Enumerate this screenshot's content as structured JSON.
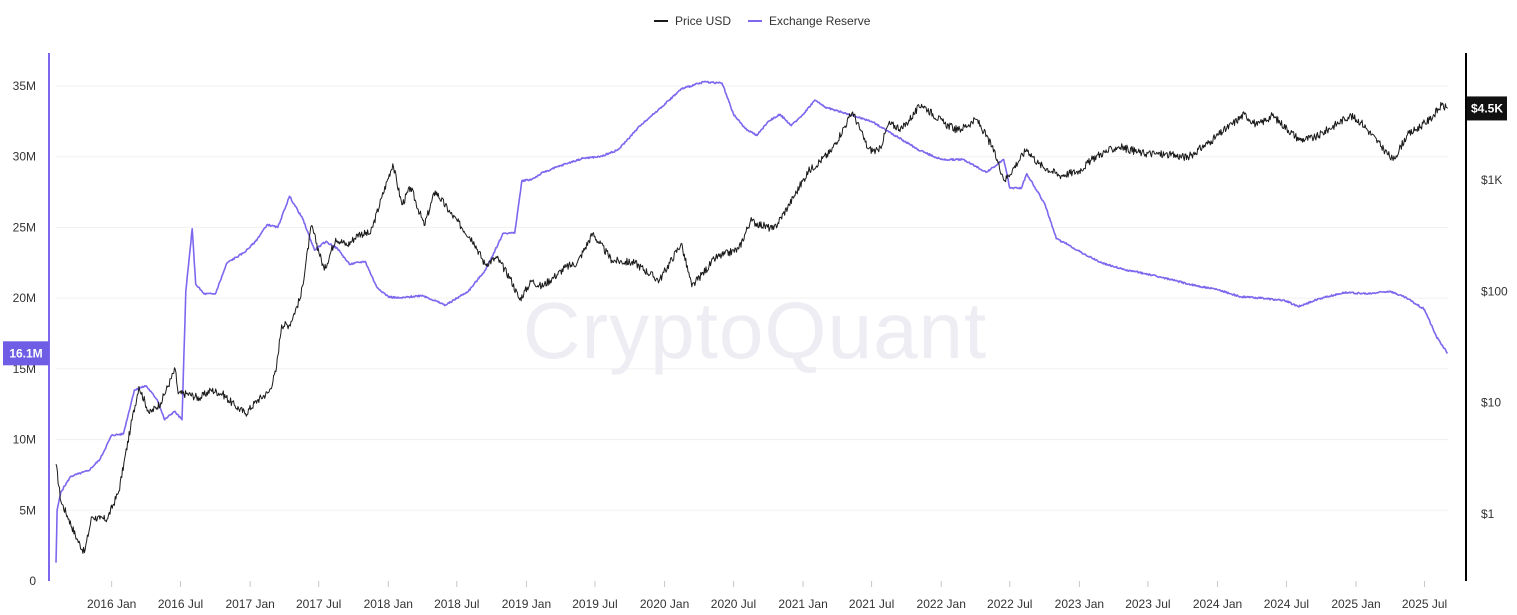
{
  "watermark": "CryptoQuant",
  "colors": {
    "price": "#1a1a1a",
    "reserve": "#7b68ee",
    "grid": "#f0f0f0",
    "badge_price_bg": "#111111",
    "badge_reserve_bg": "#6f5de6"
  },
  "badges": {
    "reserve_current": "16.1M",
    "price_current": "$4.5K"
  },
  "chart_data": {
    "type": "line",
    "title": "",
    "legend": {
      "placement": "top-center",
      "entries": [
        "Price USD",
        "Exchange Reserve"
      ]
    },
    "grid": true,
    "x_ticks": [
      "2016 Jan",
      "2016 Jul",
      "2017 Jan",
      "2017 Jul",
      "2018 Jan",
      "2018 Jul",
      "2019 Jan",
      "2019 Jul",
      "2020 Jan",
      "2020 Jul",
      "2021 Jan",
      "2021 Jul",
      "2022 Jan",
      "2022 Jul",
      "2023 Jan",
      "2023 Jul",
      "2024 Jan",
      "2024 Jul",
      "2025 Jan",
      "2025 Jul"
    ],
    "x_range": [
      "2015-08-07",
      "2025-09-01"
    ],
    "y_left": {
      "label": "",
      "range": [
        0,
        35000000
      ],
      "ticks": [
        {
          "value": 0,
          "label": "0"
        },
        {
          "value": 5000000,
          "label": "5M"
        },
        {
          "value": 10000000,
          "label": "10M"
        },
        {
          "value": 15000000,
          "label": "15M"
        },
        {
          "value": 20000000,
          "label": "20M"
        },
        {
          "value": 25000000,
          "label": "25M"
        },
        {
          "value": 30000000,
          "label": "30M"
        },
        {
          "value": 35000000,
          "label": "35M"
        }
      ]
    },
    "y_right": {
      "label": "",
      "scale": "log",
      "range": [
        0.25,
        7000
      ],
      "ticks": [
        {
          "value": 1,
          "label": "$1"
        },
        {
          "value": 10,
          "label": "$10"
        },
        {
          "value": 100,
          "label": "$100"
        },
        {
          "value": 1000,
          "label": "$1K"
        }
      ]
    },
    "series": [
      {
        "name": "Exchange Reserve",
        "axis": "left",
        "points": [
          [
            "2015-08-07",
            1300000
          ],
          [
            "2015-08-10",
            5000000
          ],
          [
            "2015-08-20",
            6300000
          ],
          [
            "2015-09-15",
            7400000
          ],
          [
            "2015-11-01",
            7800000
          ],
          [
            "2015-12-01",
            8600000
          ],
          [
            "2016-01-01",
            10300000
          ],
          [
            "2016-02-01",
            10400000
          ],
          [
            "2016-03-01",
            13500000
          ],
          [
            "2016-04-01",
            13800000
          ],
          [
            "2016-05-01",
            12800000
          ],
          [
            "2016-05-20",
            11400000
          ],
          [
            "2016-06-15",
            12000000
          ],
          [
            "2016-07-05",
            11400000
          ],
          [
            "2016-07-10",
            16000000
          ],
          [
            "2016-07-15",
            20500000
          ],
          [
            "2016-08-01",
            24900000
          ],
          [
            "2016-08-10",
            21000000
          ],
          [
            "2016-09-01",
            20300000
          ],
          [
            "2016-10-01",
            20300000
          ],
          [
            "2016-11-01",
            22500000
          ],
          [
            "2016-12-15",
            23200000
          ],
          [
            "2017-01-15",
            24000000
          ],
          [
            "2017-02-15",
            25200000
          ],
          [
            "2017-03-15",
            25000000
          ],
          [
            "2017-04-15",
            27200000
          ],
          [
            "2017-05-20",
            25600000
          ],
          [
            "2017-06-20",
            23400000
          ],
          [
            "2017-07-20",
            24000000
          ],
          [
            "2017-08-20",
            23500000
          ],
          [
            "2017-09-20",
            22400000
          ],
          [
            "2017-11-01",
            22600000
          ],
          [
            "2017-12-01",
            20800000
          ],
          [
            "2018-01-01",
            20100000
          ],
          [
            "2018-02-01",
            20000000
          ],
          [
            "2018-04-01",
            20200000
          ],
          [
            "2018-06-01",
            19500000
          ],
          [
            "2018-08-01",
            20500000
          ],
          [
            "2018-09-15",
            22000000
          ],
          [
            "2018-11-01",
            24600000
          ],
          [
            "2018-12-01",
            24600000
          ],
          [
            "2018-12-20",
            28300000
          ],
          [
            "2019-01-15",
            28400000
          ],
          [
            "2019-02-15",
            28900000
          ],
          [
            "2019-04-15",
            29500000
          ],
          [
            "2019-06-01",
            29900000
          ],
          [
            "2019-07-15",
            30000000
          ],
          [
            "2019-09-01",
            30500000
          ],
          [
            "2019-11-01",
            32300000
          ],
          [
            "2019-12-15",
            33300000
          ],
          [
            "2020-02-15",
            34800000
          ],
          [
            "2020-04-15",
            35300000
          ],
          [
            "2020-06-01",
            35200000
          ],
          [
            "2020-07-01",
            33000000
          ],
          [
            "2020-08-01",
            32000000
          ],
          [
            "2020-09-01",
            31500000
          ],
          [
            "2020-10-01",
            32500000
          ],
          [
            "2020-11-01",
            33000000
          ],
          [
            "2020-12-01",
            32200000
          ],
          [
            "2021-01-01",
            33000000
          ],
          [
            "2021-02-01",
            34000000
          ],
          [
            "2021-03-01",
            33500000
          ],
          [
            "2021-05-01",
            33000000
          ],
          [
            "2021-07-01",
            32500000
          ],
          [
            "2021-09-01",
            31500000
          ],
          [
            "2021-11-01",
            30500000
          ],
          [
            "2022-01-01",
            29800000
          ],
          [
            "2022-03-01",
            29800000
          ],
          [
            "2022-05-01",
            28900000
          ],
          [
            "2022-06-15",
            29800000
          ],
          [
            "2022-07-01",
            27800000
          ],
          [
            "2022-08-01",
            27800000
          ],
          [
            "2022-08-15",
            28800000
          ],
          [
            "2022-10-01",
            26700000
          ],
          [
            "2022-11-01",
            24200000
          ],
          [
            "2022-12-01",
            23800000
          ],
          [
            "2023-01-15",
            23100000
          ],
          [
            "2023-03-01",
            22500000
          ],
          [
            "2023-05-01",
            22000000
          ],
          [
            "2023-07-01",
            21700000
          ],
          [
            "2023-09-01",
            21300000
          ],
          [
            "2023-11-01",
            20900000
          ],
          [
            "2024-01-01",
            20600000
          ],
          [
            "2024-03-01",
            20100000
          ],
          [
            "2024-05-01",
            20000000
          ],
          [
            "2024-07-01",
            19800000
          ],
          [
            "2024-08-01",
            19400000
          ],
          [
            "2024-10-01",
            20000000
          ],
          [
            "2024-12-01",
            20400000
          ],
          [
            "2025-02-01",
            20300000
          ],
          [
            "2025-04-01",
            20500000
          ],
          [
            "2025-05-15",
            20000000
          ],
          [
            "2025-07-01",
            19200000
          ],
          [
            "2025-08-01",
            17300000
          ],
          [
            "2025-08-31",
            16100000
          ]
        ]
      },
      {
        "name": "Price USD",
        "axis": "right",
        "points": [
          [
            "2015-08-07",
            2.8
          ],
          [
            "2015-08-20",
            1.3
          ],
          [
            "2015-09-10",
            0.9
          ],
          [
            "2015-10-01",
            0.6
          ],
          [
            "2015-10-21",
            0.45
          ],
          [
            "2015-11-10",
            0.95
          ],
          [
            "2015-12-01",
            0.9
          ],
          [
            "2015-12-20",
            0.9
          ],
          [
            "2016-01-20",
            1.6
          ],
          [
            "2016-02-20",
            6
          ],
          [
            "2016-03-13",
            14
          ],
          [
            "2016-04-10",
            8
          ],
          [
            "2016-05-10",
            10
          ],
          [
            "2016-06-17",
            20
          ],
          [
            "2016-06-25",
            12
          ],
          [
            "2016-07-20",
            12
          ],
          [
            "2016-08-20",
            11
          ],
          [
            "2016-09-20",
            13
          ],
          [
            "2016-10-20",
            12
          ],
          [
            "2016-11-20",
            9.5
          ],
          [
            "2016-12-20",
            8
          ],
          [
            "2017-01-20",
            10.5
          ],
          [
            "2017-02-20",
            12.5
          ],
          [
            "2017-03-10",
            19
          ],
          [
            "2017-03-25",
            50
          ],
          [
            "2017-04-15",
            50
          ],
          [
            "2017-05-15",
            90
          ],
          [
            "2017-06-12",
            390
          ],
          [
            "2017-07-16",
            155
          ],
          [
            "2017-08-15",
            300
          ],
          [
            "2017-09-15",
            260
          ],
          [
            "2017-10-15",
            330
          ],
          [
            "2017-11-15",
            330
          ],
          [
            "2017-12-15",
            700
          ],
          [
            "2018-01-13",
            1400
          ],
          [
            "2018-02-06",
            600
          ],
          [
            "2018-03-01",
            860
          ],
          [
            "2018-04-06",
            390
          ],
          [
            "2018-05-05",
            800
          ],
          [
            "2018-06-15",
            500
          ],
          [
            "2018-08-15",
            280
          ],
          [
            "2018-09-13",
            175
          ],
          [
            "2018-10-15",
            200
          ],
          [
            "2018-11-20",
            130
          ],
          [
            "2018-12-14",
            84
          ],
          [
            "2019-01-15",
            125
          ],
          [
            "2019-02-10",
            110
          ],
          [
            "2019-03-15",
            135
          ],
          [
            "2019-04-15",
            165
          ],
          [
            "2019-05-15",
            180
          ],
          [
            "2019-06-25",
            330
          ],
          [
            "2019-08-15",
            190
          ],
          [
            "2019-10-15",
            180
          ],
          [
            "2019-12-18",
            125
          ],
          [
            "2020-02-14",
            270
          ],
          [
            "2020-03-13",
            110
          ],
          [
            "2020-05-15",
            200
          ],
          [
            "2020-07-15",
            240
          ],
          [
            "2020-08-15",
            430
          ],
          [
            "2020-10-15",
            360
          ],
          [
            "2020-11-25",
            600
          ],
          [
            "2021-01-15",
            1200
          ],
          [
            "2021-03-15",
            1800
          ],
          [
            "2021-05-12",
            4100
          ],
          [
            "2021-06-22",
            1900
          ],
          [
            "2021-07-20",
            1800
          ],
          [
            "2021-08-15",
            3200
          ],
          [
            "2021-09-20",
            2900
          ],
          [
            "2021-11-10",
            4800
          ],
          [
            "2022-01-10",
            3200
          ],
          [
            "2022-02-15",
            2800
          ],
          [
            "2022-04-05",
            3500
          ],
          [
            "2022-05-15",
            2000
          ],
          [
            "2022-06-18",
            990
          ],
          [
            "2022-08-15",
            1900
          ],
          [
            "2022-09-15",
            1400
          ],
          [
            "2022-11-10",
            1100
          ],
          [
            "2022-12-30",
            1200
          ],
          [
            "2023-02-15",
            1650
          ],
          [
            "2023-04-15",
            2000
          ],
          [
            "2023-06-15",
            1750
          ],
          [
            "2023-08-15",
            1700
          ],
          [
            "2023-10-15",
            1600
          ],
          [
            "2023-12-15",
            2250
          ],
          [
            "2024-03-12",
            3900
          ],
          [
            "2024-04-15",
            3100
          ],
          [
            "2024-05-25",
            3800
          ],
          [
            "2024-08-05",
            2300
          ],
          [
            "2024-09-15",
            2400
          ],
          [
            "2024-12-15",
            3800
          ],
          [
            "2025-01-15",
            3300
          ],
          [
            "2025-03-15",
            1900
          ],
          [
            "2025-04-09",
            1500
          ],
          [
            "2025-05-15",
            2500
          ],
          [
            "2025-07-15",
            3500
          ],
          [
            "2025-08-15",
            4700
          ],
          [
            "2025-08-31",
            4400
          ]
        ]
      }
    ]
  }
}
